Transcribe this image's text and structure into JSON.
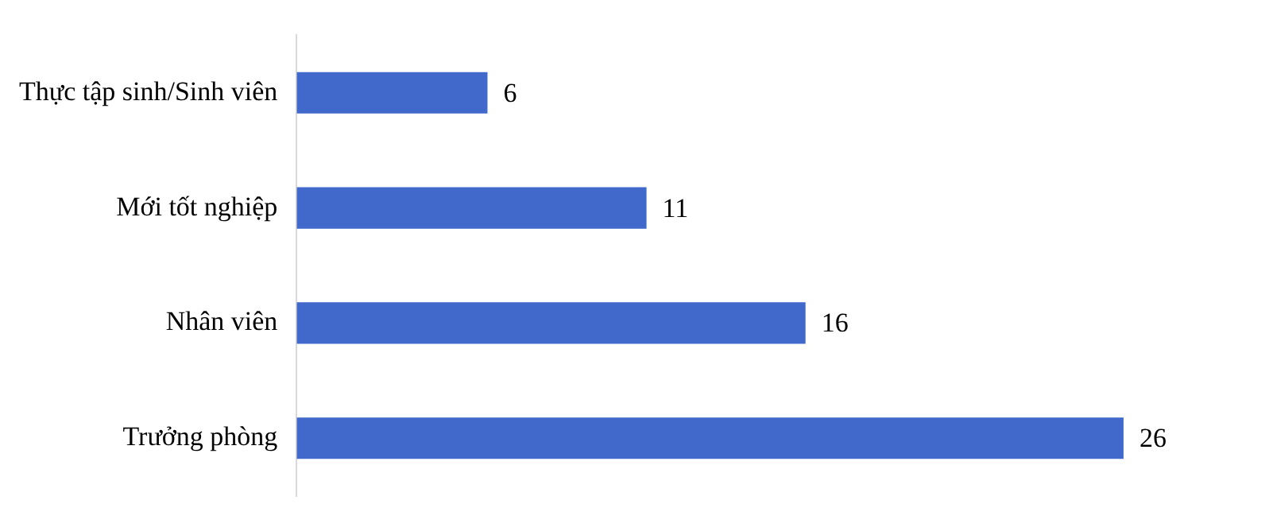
{
  "chart_data": {
    "type": "bar",
    "orientation": "horizontal",
    "categories": [
      "Thực tập sinh/Sinh viên",
      "Mới tốt nghiệp",
      "Nhân viên",
      "Trưởng phòng"
    ],
    "values": [
      6,
      11,
      16,
      26
    ],
    "color": "#4169cb",
    "data_labels": true,
    "legend": false,
    "tick_labels": "y"
  }
}
